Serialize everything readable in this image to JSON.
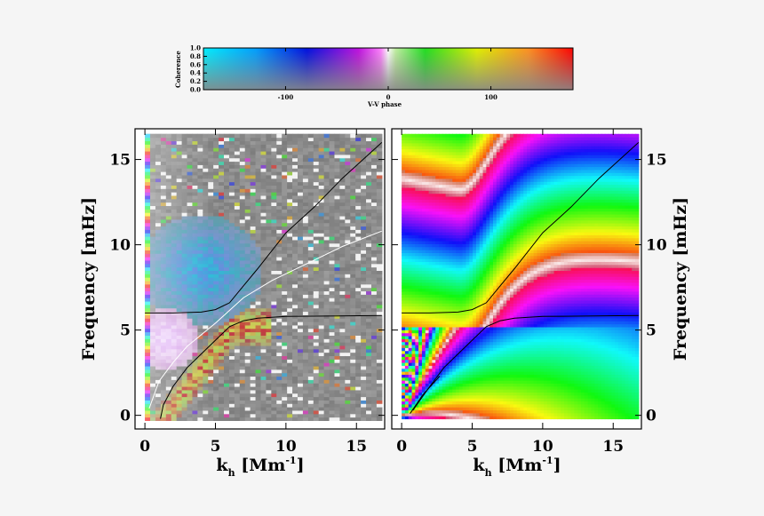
{
  "colorbar": {
    "ylabel": "Coherence",
    "xlabel": "V-V phase",
    "yticks": [
      "0.0",
      "0.2",
      "0.4",
      "0.6",
      "0.8",
      "1.0"
    ],
    "xticks": [
      "-100",
      "0",
      "100"
    ]
  },
  "chart_data": [
    {
      "type": "heatmap",
      "panel": "left",
      "title": "",
      "xlabel": "k_h [Mm^-1]",
      "ylabel": "Frequency [mHz]",
      "xlim": [
        -0.7,
        17
      ],
      "ylim": [
        -0.8,
        16.8
      ],
      "xticks": [
        "0",
        "5",
        "10",
        "15"
      ],
      "yticks": [
        "0",
        "5",
        "10",
        "15"
      ],
      "colorscale": "V-V phase (hue) and coherence (saturation)",
      "curves": [
        {
          "color": "#000000",
          "points": [
            [
              0,
              6
            ],
            [
              2,
              6
            ],
            [
              4,
              6.05
            ],
            [
              5,
              6.2
            ],
            [
              6,
              6.6
            ],
            [
              7,
              7.6
            ],
            [
              8,
              8.6
            ],
            [
              10,
              10.7
            ],
            [
              12,
              12.2
            ],
            [
              14,
              13.9
            ],
            [
              16.8,
              16
            ]
          ]
        },
        {
          "color": "#000000",
          "points": [
            [
              1.1,
              -0.2
            ],
            [
              1.3,
              0.6
            ],
            [
              2,
              1.7
            ],
            [
              3,
              2.8
            ],
            [
              4,
              3.6
            ],
            [
              5,
              4.4
            ],
            [
              6,
              5.2
            ],
            [
              7,
              5.55
            ],
            [
              8,
              5.7
            ],
            [
              10,
              5.8
            ],
            [
              16.8,
              5.85
            ]
          ]
        },
        {
          "color": "#ffffff",
          "points": [
            [
              0.3,
              0.4
            ],
            [
              1,
              2
            ],
            [
              2,
              3.1
            ],
            [
              3,
              4.05
            ],
            [
              5,
              5.4
            ],
            [
              7,
              6.9
            ],
            [
              9,
              7.9
            ],
            [
              12,
              9.1
            ],
            [
              14,
              9.9
            ],
            [
              16.8,
              10.8
            ]
          ]
        }
      ]
    },
    {
      "type": "heatmap",
      "panel": "right",
      "title": "",
      "xlabel": "k_h [Mm^-1]",
      "ylabel": "Frequency [mHz]",
      "xlim": [
        -0.7,
        17
      ],
      "ylim": [
        -0.8,
        16.8
      ],
      "xticks": [
        "0",
        "5",
        "10",
        "15"
      ],
      "yticks": [
        "0",
        "5",
        "10",
        "15"
      ],
      "colorscale": "V-V phase (hue) and coherence (saturation)",
      "curves": [
        {
          "color": "#000000",
          "points": [
            [
              0,
              6
            ],
            [
              2,
              6
            ],
            [
              4,
              6.05
            ],
            [
              5,
              6.2
            ],
            [
              6,
              6.6
            ],
            [
              7,
              7.6
            ],
            [
              8,
              8.6
            ],
            [
              10,
              10.7
            ],
            [
              12,
              12.2
            ],
            [
              14,
              13.9
            ],
            [
              16.8,
              16
            ]
          ]
        },
        {
          "color": "#000000",
          "points": [
            [
              0.8,
              0.3
            ],
            [
              2,
              1.7
            ],
            [
              3,
              2.8
            ],
            [
              4,
              3.6
            ],
            [
              5,
              4.4
            ],
            [
              6,
              5.2
            ],
            [
              7,
              5.55
            ],
            [
              8,
              5.7
            ],
            [
              10,
              5.8
            ],
            [
              16.8,
              5.85
            ]
          ]
        },
        {
          "color": "#000000",
          "points": [
            [
              0.6,
              0.1
            ],
            [
              1.5,
              1.2
            ],
            [
              2.7,
              2.3
            ]
          ]
        }
      ]
    }
  ]
}
